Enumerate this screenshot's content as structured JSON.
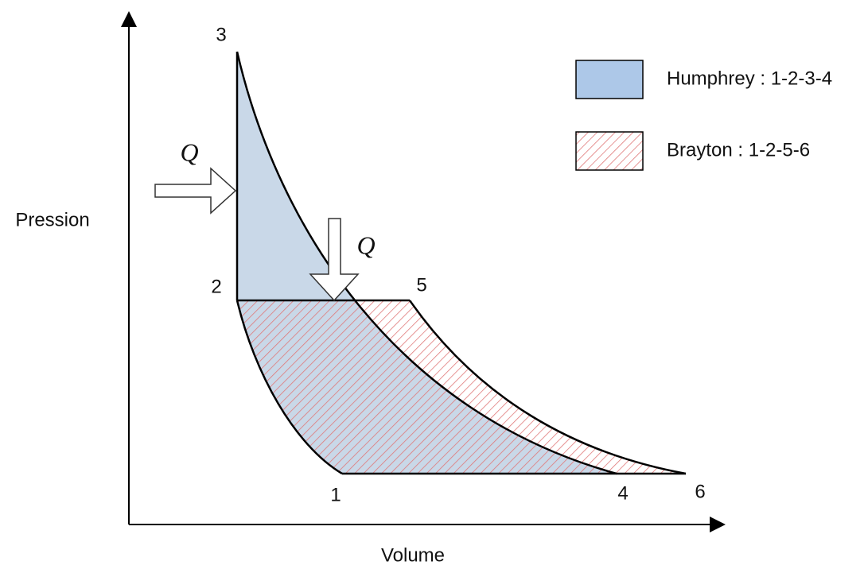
{
  "axes": {
    "x_label": "Volume",
    "y_label": "Pression"
  },
  "points": [
    "1",
    "2",
    "3",
    "4",
    "5",
    "6"
  ],
  "heat_labels": [
    "Q",
    "Q"
  ],
  "legend": [
    {
      "label": "Humphrey : 1-2-3-4"
    },
    {
      "label": "Brayton : 1-2-5-6"
    }
  ]
}
